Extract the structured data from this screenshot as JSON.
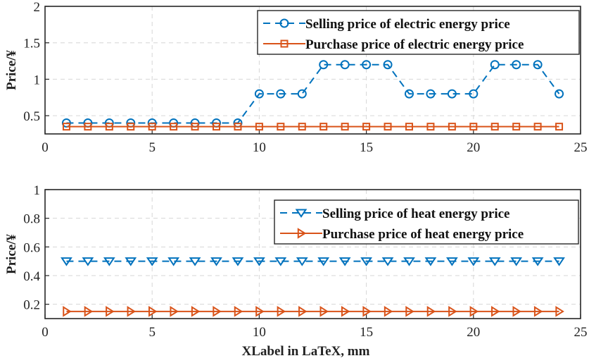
{
  "colors": {
    "selling": "#0072BD",
    "purchase": "#D95319"
  },
  "chart_data": [
    {
      "type": "line",
      "title": "",
      "xlabel": "",
      "ylabel": "Price/¥",
      "xlim": [
        0,
        25
      ],
      "ylim": [
        0.25,
        2
      ],
      "xticks": [
        0,
        5,
        10,
        15,
        20,
        25
      ],
      "yticks": [
        0.5,
        1,
        1.5,
        2
      ],
      "xtick_labels": [
        "0",
        "5",
        "10",
        "15",
        "20",
        "25"
      ],
      "ytick_labels": [
        "0.5",
        "1",
        "1.5",
        "2"
      ],
      "grid": true,
      "legend_position": "top-right",
      "x": [
        1,
        2,
        3,
        4,
        5,
        6,
        7,
        8,
        9,
        10,
        11,
        12,
        13,
        14,
        15,
        16,
        17,
        18,
        19,
        20,
        21,
        22,
        23,
        24
      ],
      "series": [
        {
          "name": "Selling price of electric energy price",
          "marker": "circle",
          "style": "dashed",
          "values": [
            0.4,
            0.4,
            0.4,
            0.4,
            0.4,
            0.4,
            0.4,
            0.4,
            0.4,
            0.8,
            0.8,
            0.8,
            1.2,
            1.2,
            1.2,
            1.2,
            0.8,
            0.8,
            0.8,
            0.8,
            1.2,
            1.2,
            1.2,
            0.8
          ]
        },
        {
          "name": "Purchase price of electric energy price",
          "marker": "square",
          "style": "solid",
          "values": [
            0.35,
            0.35,
            0.35,
            0.35,
            0.35,
            0.35,
            0.35,
            0.35,
            0.35,
            0.35,
            0.35,
            0.35,
            0.35,
            0.35,
            0.35,
            0.35,
            0.35,
            0.35,
            0.35,
            0.35,
            0.35,
            0.35,
            0.35,
            0.35
          ]
        }
      ]
    },
    {
      "type": "line",
      "title": "",
      "xlabel": "XLabel in LaTeX, mm",
      "ylabel": "Price/¥",
      "xlim": [
        0,
        25
      ],
      "ylim": [
        0.1,
        1
      ],
      "xticks": [
        0,
        5,
        10,
        15,
        20,
        25
      ],
      "yticks": [
        0.2,
        0.4,
        0.6,
        0.8,
        1
      ],
      "xtick_labels": [
        "0",
        "5",
        "10",
        "15",
        "20",
        "25"
      ],
      "ytick_labels": [
        "0.2",
        "0.4",
        "0.6",
        "0.8",
        "1"
      ],
      "grid": true,
      "legend_position": "top-right",
      "x": [
        1,
        2,
        3,
        4,
        5,
        6,
        7,
        8,
        9,
        10,
        11,
        12,
        13,
        14,
        15,
        16,
        17,
        18,
        19,
        20,
        21,
        22,
        23,
        24
      ],
      "series": [
        {
          "name": "Selling price of heat energy price",
          "marker": "triangle-down",
          "style": "dashed",
          "values": [
            0.5,
            0.5,
            0.5,
            0.5,
            0.5,
            0.5,
            0.5,
            0.5,
            0.5,
            0.5,
            0.5,
            0.5,
            0.5,
            0.5,
            0.5,
            0.5,
            0.5,
            0.5,
            0.5,
            0.5,
            0.5,
            0.5,
            0.5,
            0.5
          ]
        },
        {
          "name": "Purchase price of heat energy price",
          "marker": "triangle-right",
          "style": "solid",
          "values": [
            0.15,
            0.15,
            0.15,
            0.15,
            0.15,
            0.15,
            0.15,
            0.15,
            0.15,
            0.15,
            0.15,
            0.15,
            0.15,
            0.15,
            0.15,
            0.15,
            0.15,
            0.15,
            0.15,
            0.15,
            0.15,
            0.15,
            0.15,
            0.15
          ]
        }
      ]
    }
  ]
}
